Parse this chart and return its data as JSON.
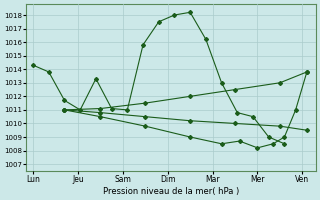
{
  "title": "Pression niveau de la mer( hPa )",
  "background_color": "#cce8e8",
  "grid_color": "#aacccc",
  "line_color": "#1a5c1a",
  "xtick_labels": [
    "Lun",
    "Jeu",
    "Sam",
    "Dim",
    "Mar",
    "Mer",
    "Ven"
  ],
  "xtick_positions": [
    0,
    1,
    2,
    3,
    4,
    5,
    6
  ],
  "ylim": [
    1006.5,
    1018.8
  ],
  "yticks": [
    1007,
    1008,
    1009,
    1010,
    1011,
    1012,
    1013,
    1014,
    1015,
    1016,
    1017,
    1018
  ],
  "xlim": [
    -0.15,
    6.3
  ],
  "series": [
    {
      "x": [
        0.0,
        0.35,
        0.7,
        1.05,
        1.4,
        1.75,
        2.1,
        2.45,
        2.8,
        3.15,
        3.5,
        3.85,
        4.2,
        4.55,
        4.9,
        5.25,
        5.6
      ],
      "y": [
        1014.3,
        1013.8,
        1011.7,
        1011.0,
        1013.3,
        1011.1,
        1011.0,
        1015.8,
        1017.5,
        1018.0,
        1018.2,
        1016.2,
        1013.0,
        1010.8,
        1010.5,
        1009.0,
        1008.5
      ]
    },
    {
      "x": [
        0.7,
        1.5,
        2.5,
        3.5,
        4.5,
        5.5,
        6.1
      ],
      "y": [
        1011.0,
        1011.1,
        1011.5,
        1012.0,
        1012.5,
        1013.0,
        1013.8
      ]
    },
    {
      "x": [
        0.7,
        1.5,
        2.5,
        3.5,
        4.5,
        5.5,
        6.1
      ],
      "y": [
        1011.0,
        1010.8,
        1010.5,
        1010.2,
        1010.0,
        1009.8,
        1009.5
      ]
    },
    {
      "x": [
        0.7,
        1.5,
        2.5,
        3.5,
        4.2,
        4.6,
        5.0,
        5.35,
        5.6,
        5.85,
        6.1
      ],
      "y": [
        1011.0,
        1010.5,
        1009.8,
        1009.0,
        1008.5,
        1008.7,
        1008.2,
        1008.5,
        1009.0,
        1011.0,
        1013.8
      ]
    }
  ]
}
